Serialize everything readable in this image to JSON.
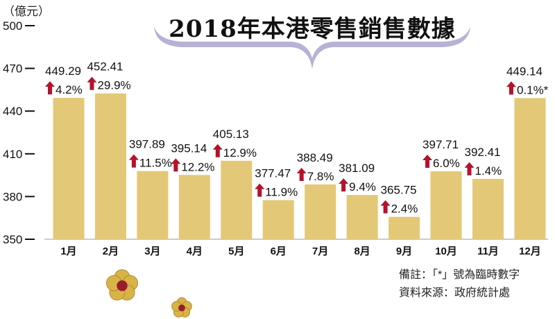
{
  "chart_data": {
    "type": "bar",
    "title": "2018年本港零售銷售數據",
    "ylabel": "（億元）",
    "ylim": [
      350,
      500
    ],
    "yticks": [
      350,
      380,
      410,
      440,
      470,
      500
    ],
    "categories": [
      "1月",
      "2月",
      "3月",
      "4月",
      "5月",
      "6月",
      "7月",
      "8月",
      "9月",
      "10月",
      "11月",
      "12月"
    ],
    "values": [
      449.29,
      452.41,
      397.89,
      395.14,
      405.13,
      377.47,
      388.49,
      381.09,
      365.75,
      397.71,
      392.41,
      449.14
    ],
    "value_labels": [
      "449.29",
      "452.41",
      "397.89",
      "395.14",
      "405.13",
      "377.47",
      "388.49",
      "381.09",
      "365.75",
      "397.71",
      "392.41",
      "449.14"
    ],
    "change_labels": [
      "4.2%",
      "29.9%",
      "11.5%",
      "12.2%",
      "12.9%",
      "11.9%",
      "7.8%",
      "9.4%",
      "2.4%",
      "6.0%",
      "1.4%",
      "0.1%*"
    ],
    "change_direction": "up",
    "bar_color": "#E3C878",
    "arrow_color": "#B5122B",
    "accent_color": "#B9B0D6",
    "grid": false
  },
  "notes": {
    "remark": "備註：「*」號為臨時數字",
    "source": "資料來源：政府統計處"
  }
}
